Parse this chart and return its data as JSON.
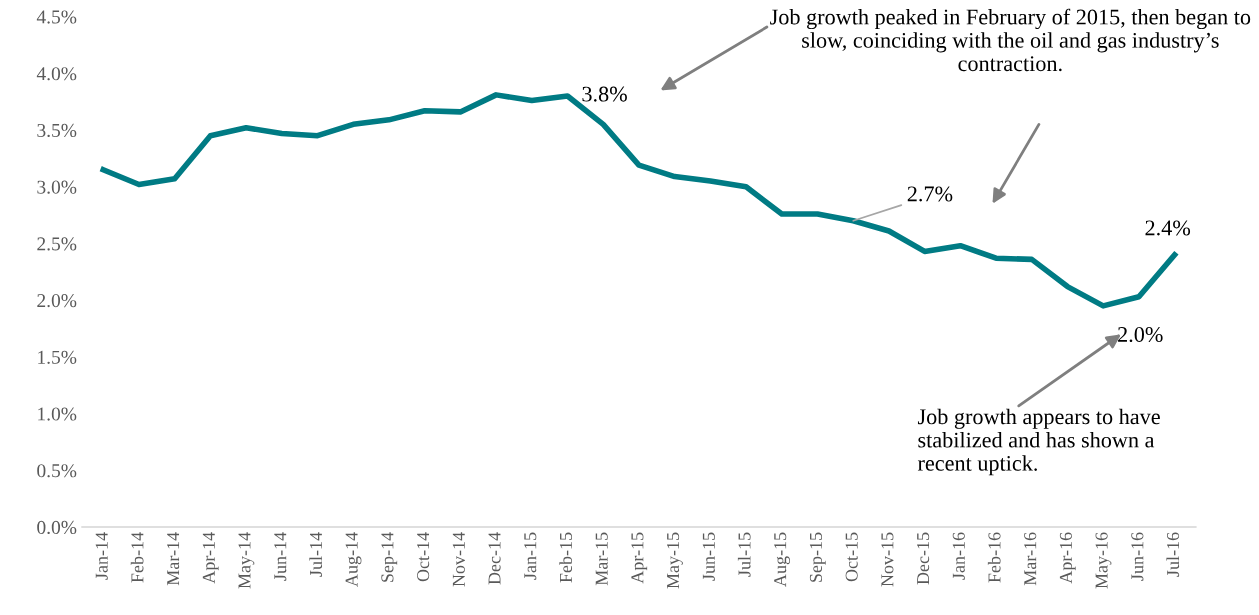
{
  "chart_data": {
    "type": "line",
    "categories": [
      "Jan-14",
      "Feb-14",
      "Mar-14",
      "Apr-14",
      "May-14",
      "Jun-14",
      "Jul-14",
      "Aug-14",
      "Sep-14",
      "Oct-14",
      "Nov-14",
      "Dec-14",
      "Jan-15",
      "Feb-15",
      "Mar-15",
      "Apr-15",
      "May-15",
      "Jun-15",
      "Jul-15",
      "Aug-15",
      "Sep-15",
      "Oct-15",
      "Nov-15",
      "Dec-15",
      "Jan-16",
      "Feb-16",
      "Mar-16",
      "Apr-16",
      "May-16",
      "Jun-16",
      "Jul-16"
    ],
    "series": [
      {
        "color": "#007b84",
        "values": [
          3.15,
          3.02,
          3.07,
          3.45,
          3.52,
          3.47,
          3.45,
          3.55,
          3.59,
          3.67,
          3.66,
          3.81,
          3.76,
          3.8,
          3.55,
          3.19,
          3.09,
          3.05,
          3.0,
          2.76,
          2.76,
          2.7,
          2.61,
          2.43,
          2.48,
          2.37,
          2.36,
          2.12,
          1.95,
          2.03,
          2.4
        ]
      }
    ],
    "ylim": [
      0,
      4.5
    ],
    "yticks": [
      {
        "value": 0,
        "label": "0.0%"
      },
      {
        "value": 0.5,
        "label": "0.5%"
      },
      {
        "value": 1.0,
        "label": "1.0%"
      },
      {
        "value": 1.5,
        "label": "1.5%"
      },
      {
        "value": 2.0,
        "label": "2.0%"
      },
      {
        "value": 2.5,
        "label": "2.5%"
      },
      {
        "value": 3.0,
        "label": "3.0%"
      },
      {
        "value": 3.5,
        "label": "3.5%"
      },
      {
        "value": 4.0,
        "label": "4.0%"
      },
      {
        "value": 4.5,
        "label": "4.5%"
      }
    ],
    "grid": false,
    "marker": "none",
    "line_style": "solid",
    "annotations": [
      {
        "text": "3.8%",
        "x": "Feb-15",
        "y": 3.8
      },
      {
        "text": "2.7%",
        "x": "Oct-15",
        "y": 2.7
      },
      {
        "text": "2.0%",
        "x": "May-16",
        "y": 1.95
      },
      {
        "text": "2.4%",
        "x": "Jul-16",
        "y": 2.4
      },
      "Job growth peaked in February of 2015, then began to slow, coinciding with the oil and gas industry’s contraction.",
      "Job growth appears to have stabilized and has shown a recent uptick."
    ]
  }
}
